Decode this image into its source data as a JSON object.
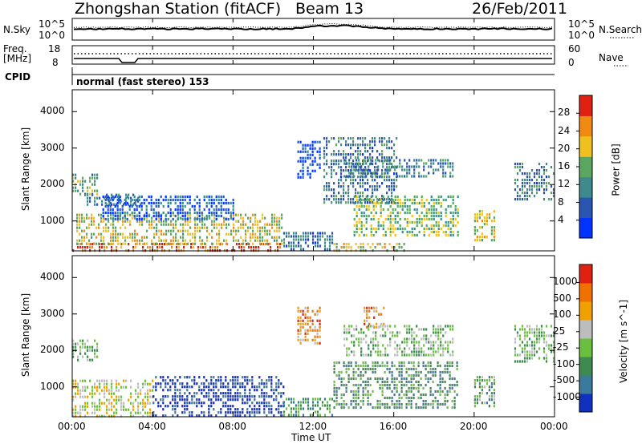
{
  "header": {
    "title": "Zhongshan Station (fitACF)",
    "beam": "Beam 13",
    "date": "26/Feb/2011"
  },
  "strip": {
    "nsky_label": "N.Sky",
    "nsky_ticks": [
      "10^5",
      "10^0"
    ],
    "nsearch_label": "N.Search",
    "nsearch_ticks": [
      "10^5",
      "10^0"
    ],
    "freq_label": "Freq.",
    "freq_unit": "[MHz]",
    "freq_ticks": [
      "18",
      "8"
    ],
    "nave_label": "Nave",
    "nave_ticks": [
      "60",
      "0"
    ],
    "cpid_label": "CPID",
    "cpid_value": "normal (fast stereo) 153"
  },
  "chart_data": [
    {
      "type": "heatmap",
      "name": "power-panel",
      "ylabel": "Slant Range [km]",
      "yticks": [
        "1000",
        "2000",
        "3000",
        "4000"
      ],
      "ylim": [
        180,
        4600
      ],
      "xlim": [
        0,
        24
      ],
      "colorbar_label": "Power [dB]",
      "colorbar_ticks": [
        "4",
        "8",
        "12",
        "16",
        "20",
        "24",
        "28"
      ],
      "colorbar_range": [
        0,
        32
      ],
      "colors": [
        "#0033ff",
        "#2a55b0",
        "#3f8a8a",
        "#5aa860",
        "#f0c020",
        "#f08a10",
        "#e02010"
      ],
      "regions": [
        {
          "t": [
            0.0,
            1.2
          ],
          "r": [
            1700,
            2300
          ],
          "level": 0.45
        },
        {
          "t": [
            0.6,
            3.4
          ],
          "r": [
            1450,
            1750
          ],
          "level": 0.3
        },
        {
          "t": [
            0.0,
            10.5
          ],
          "r": [
            180,
            400
          ],
          "level": 0.85
        },
        {
          "t": [
            0.2,
            10.4
          ],
          "r": [
            400,
            1200
          ],
          "level": 0.6
        },
        {
          "t": [
            1.5,
            8.0
          ],
          "r": [
            1000,
            1700
          ],
          "level": 0.2
        },
        {
          "t": [
            10.5,
            13.0
          ],
          "r": [
            250,
            700
          ],
          "level": 0.3
        },
        {
          "t": [
            11.2,
            12.3
          ],
          "r": [
            2200,
            3200
          ],
          "level": 0.15
        },
        {
          "t": [
            12.5,
            16.2
          ],
          "r": [
            1500,
            3300
          ],
          "level": 0.3
        },
        {
          "t": [
            13.5,
            19.0
          ],
          "r": [
            2200,
            2700
          ],
          "level": 0.35
        },
        {
          "t": [
            14.0,
            19.2
          ],
          "r": [
            600,
            1700
          ],
          "level": 0.5
        },
        {
          "t": [
            13.0,
            16.5
          ],
          "r": [
            180,
            400
          ],
          "level": 0.65
        },
        {
          "t": [
            20.0,
            21.0
          ],
          "r": [
            500,
            1300
          ],
          "level": 0.6
        },
        {
          "t": [
            22.0,
            24.0
          ],
          "r": [
            1600,
            2600
          ],
          "level": 0.3
        }
      ]
    },
    {
      "type": "heatmap",
      "name": "velocity-panel",
      "ylabel": "Slant Range [km]",
      "yticks": [
        "1000",
        "2000",
        "3000",
        "4000"
      ],
      "ylim": [
        180,
        4600
      ],
      "xlim": [
        0,
        24
      ],
      "xticks": [
        "00:00",
        "04:00",
        "08:00",
        "12:00",
        "16:00",
        "20:00",
        "00:00"
      ],
      "xlabel": "Time UT",
      "colorbar_label": "Velocity [m s^-1]",
      "colorbar_ticks": [
        "1000",
        "500",
        "100",
        "25",
        "-25",
        "-100",
        "-500",
        "-1000"
      ],
      "colors": [
        "#1030c0",
        "#3a7a9a",
        "#3f8a50",
        "#6abf40",
        "#bdbdbd",
        "#f0a000",
        "#f07000",
        "#e02010"
      ],
      "regions": [
        {
          "t": [
            0.0,
            1.2
          ],
          "r": [
            1700,
            2300
          ],
          "level": 0.45
        },
        {
          "t": [
            0.0,
            4.0
          ],
          "r": [
            180,
            1200
          ],
          "level": 0.55
        },
        {
          "t": [
            4.0,
            10.5
          ],
          "r": [
            200,
            1300
          ],
          "level": 0.05
        },
        {
          "t": [
            10.5,
            13.0
          ],
          "r": [
            250,
            700
          ],
          "level": 0.3
        },
        {
          "t": [
            11.2,
            12.3
          ],
          "r": [
            2200,
            3200
          ],
          "level": 0.75
        },
        {
          "t": [
            14.5,
            15.5
          ],
          "r": [
            2600,
            3200
          ],
          "level": 0.75
        },
        {
          "t": [
            13.5,
            19.0
          ],
          "r": [
            1900,
            2700
          ],
          "level": 0.45
        },
        {
          "t": [
            13.0,
            19.2
          ],
          "r": [
            400,
            1700
          ],
          "level": 0.3
        },
        {
          "t": [
            20.0,
            21.0
          ],
          "r": [
            500,
            1300
          ],
          "level": 0.35
        },
        {
          "t": [
            22.0,
            24.0
          ],
          "r": [
            1700,
            2700
          ],
          "level": 0.45
        }
      ]
    }
  ]
}
